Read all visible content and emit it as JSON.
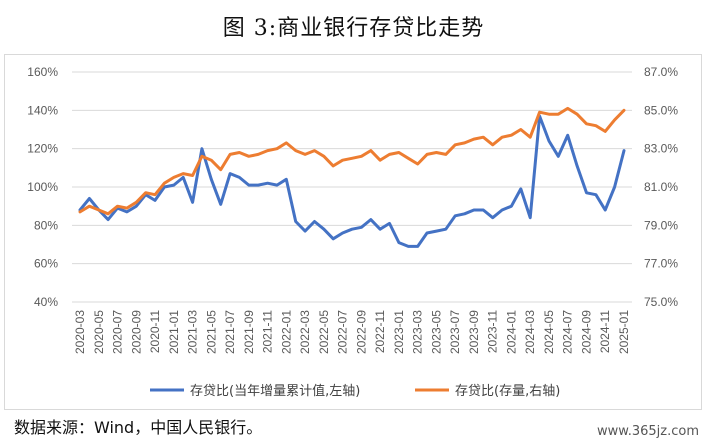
{
  "title": "图 3:商业银行存贷比走势",
  "source": "数据来源：Wind，中国人民银行。",
  "watermark": "www.365jz.com",
  "colors": {
    "series_left": "#4472C4",
    "series_right": "#ED7D31",
    "grid": "#d9d9d9"
  },
  "chart_data": {
    "type": "line",
    "x": [
      "2020-03",
      "2020-04",
      "2020-05",
      "2020-06",
      "2020-07",
      "2020-08",
      "2020-09",
      "2020-10",
      "2020-11",
      "2020-12",
      "2021-01",
      "2021-02",
      "2021-03",
      "2021-04",
      "2021-05",
      "2021-06",
      "2021-07",
      "2021-08",
      "2021-09",
      "2021-10",
      "2021-11",
      "2021-12",
      "2022-01",
      "2022-02",
      "2022-03",
      "2022-04",
      "2022-05",
      "2022-06",
      "2022-07",
      "2022-08",
      "2022-09",
      "2022-10",
      "2022-11",
      "2022-12",
      "2023-01",
      "2023-02",
      "2023-03",
      "2023-04",
      "2023-05",
      "2023-06",
      "2023-07",
      "2023-08",
      "2023-09",
      "2023-10",
      "2023-11",
      "2023-12",
      "2024-01",
      "2024-02",
      "2024-03",
      "2024-04",
      "2024-05",
      "2024-06",
      "2024-07",
      "2024-08",
      "2024-09",
      "2024-10",
      "2024-11",
      "2024-12",
      "2025-01"
    ],
    "x_tick_labels": [
      "2020-03",
      "2020-05",
      "2020-07",
      "2020-09",
      "2020-11",
      "2021-01",
      "2021-03",
      "2021-05",
      "2021-07",
      "2021-09",
      "2021-11",
      "2022-01",
      "2022-03",
      "2022-05",
      "2022-07",
      "2022-09",
      "2022-11",
      "2023-01",
      "2023-03",
      "2023-05",
      "2023-07",
      "2023-09",
      "2023-11",
      "2024-01",
      "2024-03",
      "2024-05",
      "2024-07",
      "2024-09",
      "2024-11",
      "2025-01"
    ],
    "y_left": {
      "ylim": [
        40,
        160
      ],
      "ticks": [
        "40%",
        "60%",
        "80%",
        "100%",
        "120%",
        "140%",
        "160%"
      ]
    },
    "y_right": {
      "ylim": [
        75.0,
        87.0
      ],
      "ticks": [
        "75.0%",
        "77.0%",
        "79.0%",
        "81.0%",
        "83.0%",
        "85.0%",
        "87.0%"
      ]
    },
    "grid": true,
    "legend_position": "bottom",
    "series": [
      {
        "name": "存贷比(当年增量累计值,左轴)",
        "axis": "left",
        "values": [
          88,
          94,
          88,
          83,
          89,
          87,
          90,
          96,
          93,
          100,
          101,
          105,
          92,
          120,
          104,
          91,
          107,
          105,
          101,
          101,
          102,
          101,
          104,
          82,
          77,
          82,
          78,
          73,
          76,
          78,
          79,
          83,
          78,
          81,
          71,
          69,
          69,
          76,
          77,
          78,
          85,
          86,
          88,
          88,
          84,
          88,
          90,
          99,
          84,
          137,
          124,
          116,
          127,
          111,
          97,
          96,
          88,
          100,
          119
        ],
        "line_color": "#4472C4"
      },
      {
        "name": "存贷比(存量,右轴)",
        "axis": "right",
        "values": [
          79.7,
          80.0,
          79.8,
          79.6,
          80.0,
          79.9,
          80.2,
          80.7,
          80.6,
          81.2,
          81.5,
          81.7,
          81.6,
          82.6,
          82.4,
          81.9,
          82.7,
          82.8,
          82.6,
          82.7,
          82.9,
          83.0,
          83.3,
          82.9,
          82.7,
          82.9,
          82.6,
          82.1,
          82.4,
          82.5,
          82.6,
          82.9,
          82.4,
          82.7,
          82.8,
          82.5,
          82.2,
          82.7,
          82.8,
          82.7,
          83.2,
          83.3,
          83.5,
          83.6,
          83.2,
          83.6,
          83.7,
          84.0,
          83.6,
          84.9,
          84.8,
          84.8,
          85.1,
          84.8,
          84.3,
          84.2,
          83.9,
          84.5,
          85.0
        ],
        "line_color": "#ED7D31"
      }
    ]
  }
}
